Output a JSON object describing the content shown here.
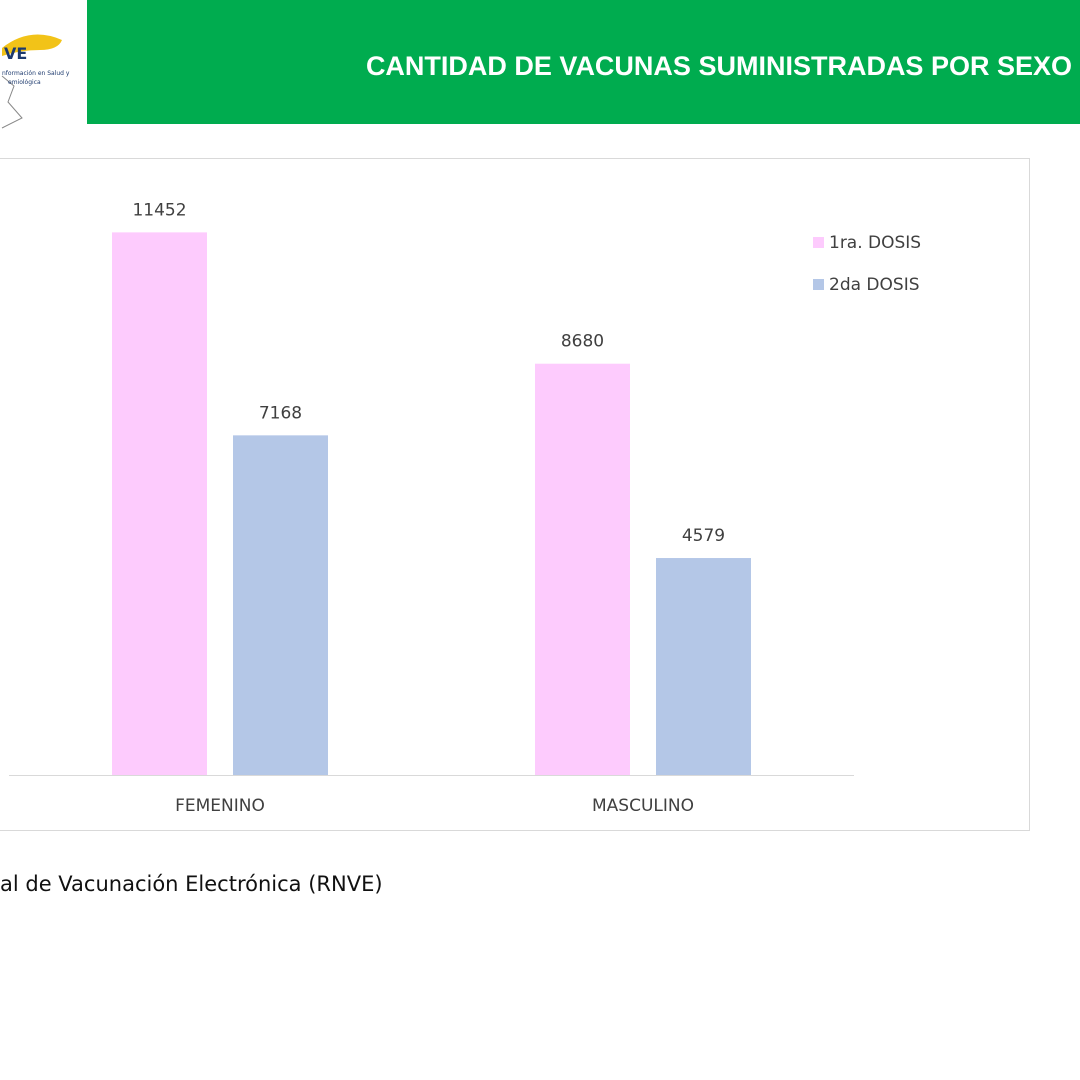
{
  "header": {
    "title": "CANTIDAD DE VACUNAS SUMINISTRADAS POR SEXO",
    "band_color": "#00ac4f"
  },
  "logo": {
    "text": "VE",
    "subtitle_lines": [
      "nformación en Salud y",
      "emiológica"
    ]
  },
  "source_text": "al de Vacunación Electrónica (RNVE)",
  "chart_data": {
    "type": "bar",
    "title": "",
    "xlabel": "",
    "ylabel": "",
    "categories": [
      "FEMENINO",
      "MASCULINO"
    ],
    "series": [
      {
        "name": "1ra. DOSIS",
        "values": [
          11452,
          8680
        ],
        "color": "#fdcbfd"
      },
      {
        "name": "2da DOSIS",
        "values": [
          7168,
          4579
        ],
        "color": "#b4c7e7"
      }
    ],
    "ylim": [
      0,
      13000
    ],
    "grid": false,
    "legend": "top-right",
    "data_labels": true
  }
}
